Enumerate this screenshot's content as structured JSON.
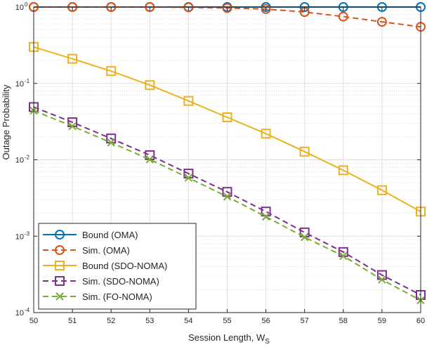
{
  "chart_data": {
    "type": "line",
    "title": "",
    "xlabel": "Session Length, W",
    "xlabel_subscript": "S",
    "ylabel": "Outage Probability",
    "x": [
      50,
      51,
      52,
      53,
      54,
      55,
      56,
      57,
      58,
      59,
      60
    ],
    "xlim": [
      50,
      60
    ],
    "ylim": [
      0.0001,
      1
    ],
    "yscale": "log",
    "grid": true,
    "minor_grid": true,
    "legend_position": "bottom-left",
    "x_tick_labels": [
      "50",
      "51",
      "52",
      "53",
      "54",
      "55",
      "56",
      "57",
      "58",
      "59",
      "60"
    ],
    "y_ticks": [
      {
        "value": 1,
        "base": "10",
        "exp": "0"
      },
      {
        "value": 0.1,
        "base": "10",
        "exp": "-1"
      },
      {
        "value": 0.01,
        "base": "10",
        "exp": "-2"
      },
      {
        "value": 0.001,
        "base": "10",
        "exp": "-3"
      },
      {
        "value": 0.0001,
        "base": "10",
        "exp": "-4"
      }
    ],
    "series": [
      {
        "name": "Bound (OMA)",
        "color": "#0072BD",
        "dash": "solid",
        "marker": "circle",
        "values": [
          1,
          1,
          1,
          1,
          1,
          1,
          1,
          1,
          1,
          1,
          1
        ]
      },
      {
        "name": "Sim. (OMA)",
        "color": "#D95319",
        "dash": "dashed",
        "marker": "circle",
        "values": [
          1,
          1,
          1,
          1,
          0.99,
          0.97,
          0.94,
          0.86,
          0.75,
          0.64,
          0.55
        ]
      },
      {
        "name": "Bound (SDO-NOMA)",
        "color": "#EDB120",
        "dash": "solid",
        "marker": "square",
        "values": [
          0.3,
          0.21,
          0.145,
          0.095,
          0.059,
          0.036,
          0.022,
          0.0128,
          0.0073,
          0.004,
          0.0021
        ]
      },
      {
        "name": "Sim. (SDO-NOMA)",
        "color": "#7E2F8E",
        "dash": "dashed",
        "marker": "square",
        "values": [
          0.049,
          0.031,
          0.019,
          0.0115,
          0.0066,
          0.0038,
          0.0021,
          0.00112,
          0.00062,
          0.00031,
          0.00017
        ]
      },
      {
        "name": "Sim. (FO-NOMA)",
        "color": "#77AC30",
        "dash": "dashed",
        "marker": "x",
        "values": [
          0.044,
          0.0275,
          0.0168,
          0.0101,
          0.0058,
          0.0033,
          0.0018,
          0.00097,
          0.00055,
          0.00027,
          0.000145
        ]
      }
    ]
  }
}
